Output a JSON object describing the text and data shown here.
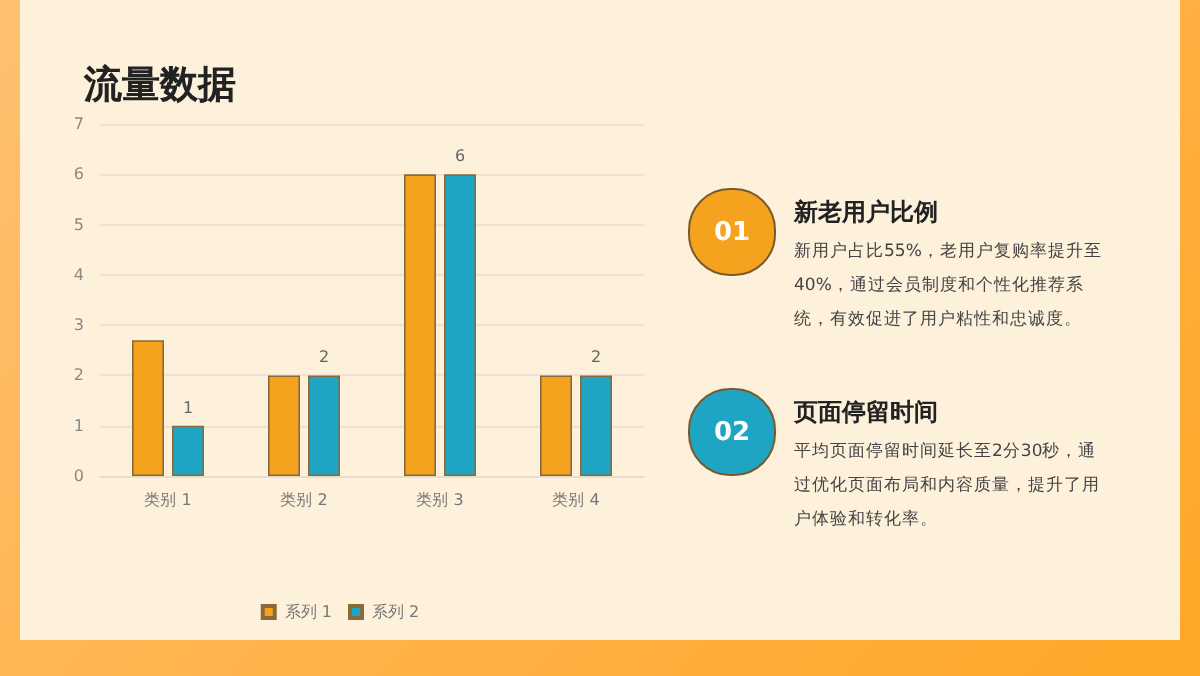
{
  "chart_data": {
    "type": "bar",
    "title": "流量数据",
    "categories": [
      "类别 1",
      "类别 2",
      "类别 3",
      "类别 4"
    ],
    "series": [
      {
        "name": "系列 1",
        "color": "#f5a31f",
        "values": [
          2.7,
          2,
          6,
          2
        ]
      },
      {
        "name": "系列 2",
        "color": "#1fa5c4",
        "values": [
          1,
          2,
          6,
          2
        ],
        "value_labels": [
          "1",
          "2",
          "6",
          "2"
        ]
      }
    ],
    "ylim": [
      0,
      7
    ],
    "yticks": [
      0,
      1,
      2,
      3,
      4,
      5,
      6,
      7
    ],
    "grid": "y",
    "legend": "bottom",
    "annotations": [
      "01",
      "新老用户比例",
      "新用户占比55%，老用户复购率提升至40%，通过会员制度和个性化推荐系统，有效促进了用户粘性和忠诚度。",
      "02",
      "页面停留时间",
      "平均页面停留时间延长至2分30秒，通过优化页面布局和内容质量，提升了用户体验和转化率。"
    ]
  }
}
